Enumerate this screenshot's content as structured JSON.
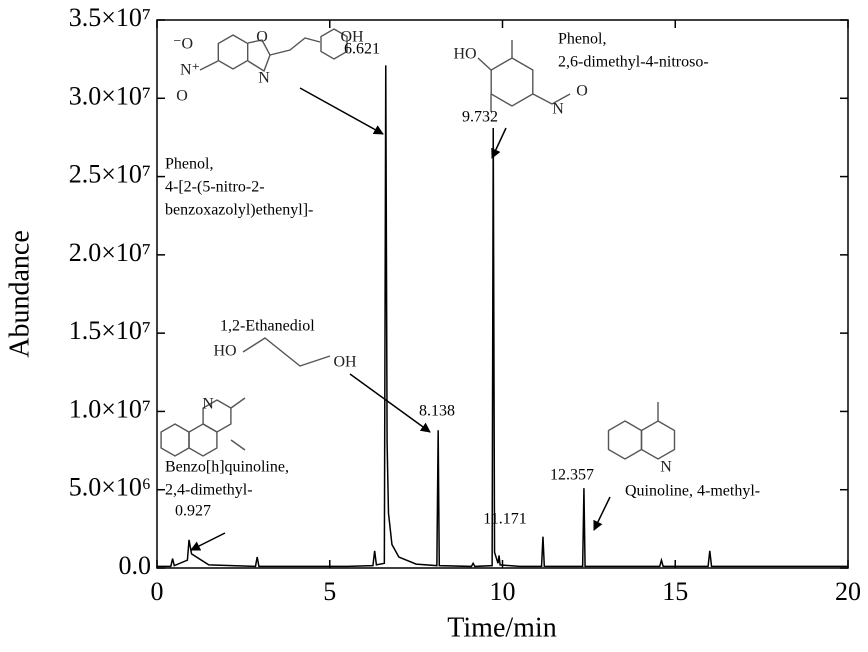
{
  "chart_data": {
    "type": "line",
    "x_label": "Time/min",
    "y_label": "Abundance",
    "xlim": [
      0,
      20
    ],
    "xticks": [
      0,
      5,
      10,
      15,
      20
    ],
    "ylim": [
      0,
      35000000
    ],
    "yticks": [
      {
        "value": 0,
        "label": "0.0"
      },
      {
        "value": 5000000,
        "label": "5.0×10⁶"
      },
      {
        "value": 10000000,
        "label": "1.0×10⁷"
      },
      {
        "value": 15000000,
        "label": "1.5×10⁷"
      },
      {
        "value": 20000000,
        "label": "2.0×10⁷"
      },
      {
        "value": 25000000,
        "label": "2.5×10⁷"
      },
      {
        "value": 30000000,
        "label": "3.0×10⁷"
      },
      {
        "value": 35000000,
        "label": "3.5×10⁷"
      }
    ],
    "series": [
      {
        "color": "#000000",
        "x": [
          0,
          0.4,
          0.45,
          0.5,
          0.88,
          0.927,
          1.0,
          1.5,
          2.85,
          2.9,
          2.95,
          5.5,
          6.25,
          6.3,
          6.35,
          6.58,
          6.621,
          6.66,
          6.7,
          6.8,
          7.0,
          7.5,
          8.1,
          8.138,
          8.17,
          9.1,
          9.15,
          9.2,
          9.7,
          9.732,
          9.77,
          9.87,
          9.9,
          9.93,
          10.5,
          11.13,
          11.171,
          11.21,
          12.32,
          12.357,
          12.39,
          14.55,
          14.6,
          14.65,
          15.95,
          16.0,
          16.05,
          20
        ],
        "values": [
          100000,
          100000,
          600000,
          150000,
          500000,
          1800000,
          900000,
          200000,
          100000,
          700000,
          100000,
          100000,
          150000,
          1100000,
          200000,
          300000,
          32100000,
          8000000,
          3500000,
          1500000,
          700000,
          250000,
          150000,
          8800000,
          150000,
          100000,
          300000,
          100000,
          150000,
          28100000,
          1000000,
          300000,
          800000,
          200000,
          100000,
          100000,
          2000000,
          100000,
          100000,
          5100000,
          100000,
          100000,
          500000,
          100000,
          100000,
          1100000,
          100000,
          100000
        ]
      }
    ],
    "peaks": [
      {
        "time": 0.927,
        "name": [
          "Benzo[h]quinoline,",
          "2,4-dimethyl-"
        ],
        "atoms": [
          "N"
        ]
      },
      {
        "time": 6.621,
        "name": [
          "Phenol,",
          "4-[2-(5-nitro-2-",
          "benzoxazolyl)ethenyl]-"
        ],
        "atoms": [
          "OH",
          "O",
          "N",
          "⁻O",
          "N⁺",
          "O"
        ]
      },
      {
        "time": 8.138,
        "name": [
          "1,2-Ethanediol"
        ],
        "atoms": [
          "HO",
          "OH"
        ]
      },
      {
        "time": 9.732,
        "name": [
          "Phenol,",
          "2,6-dimethyl-4-nitroso-"
        ],
        "atoms": [
          "HO",
          "N",
          "O"
        ]
      },
      {
        "time": 11.171
      },
      {
        "time": 12.357,
        "name": [
          "Quinoline, 4-methyl-"
        ],
        "atoms": [
          "N"
        ]
      }
    ]
  }
}
